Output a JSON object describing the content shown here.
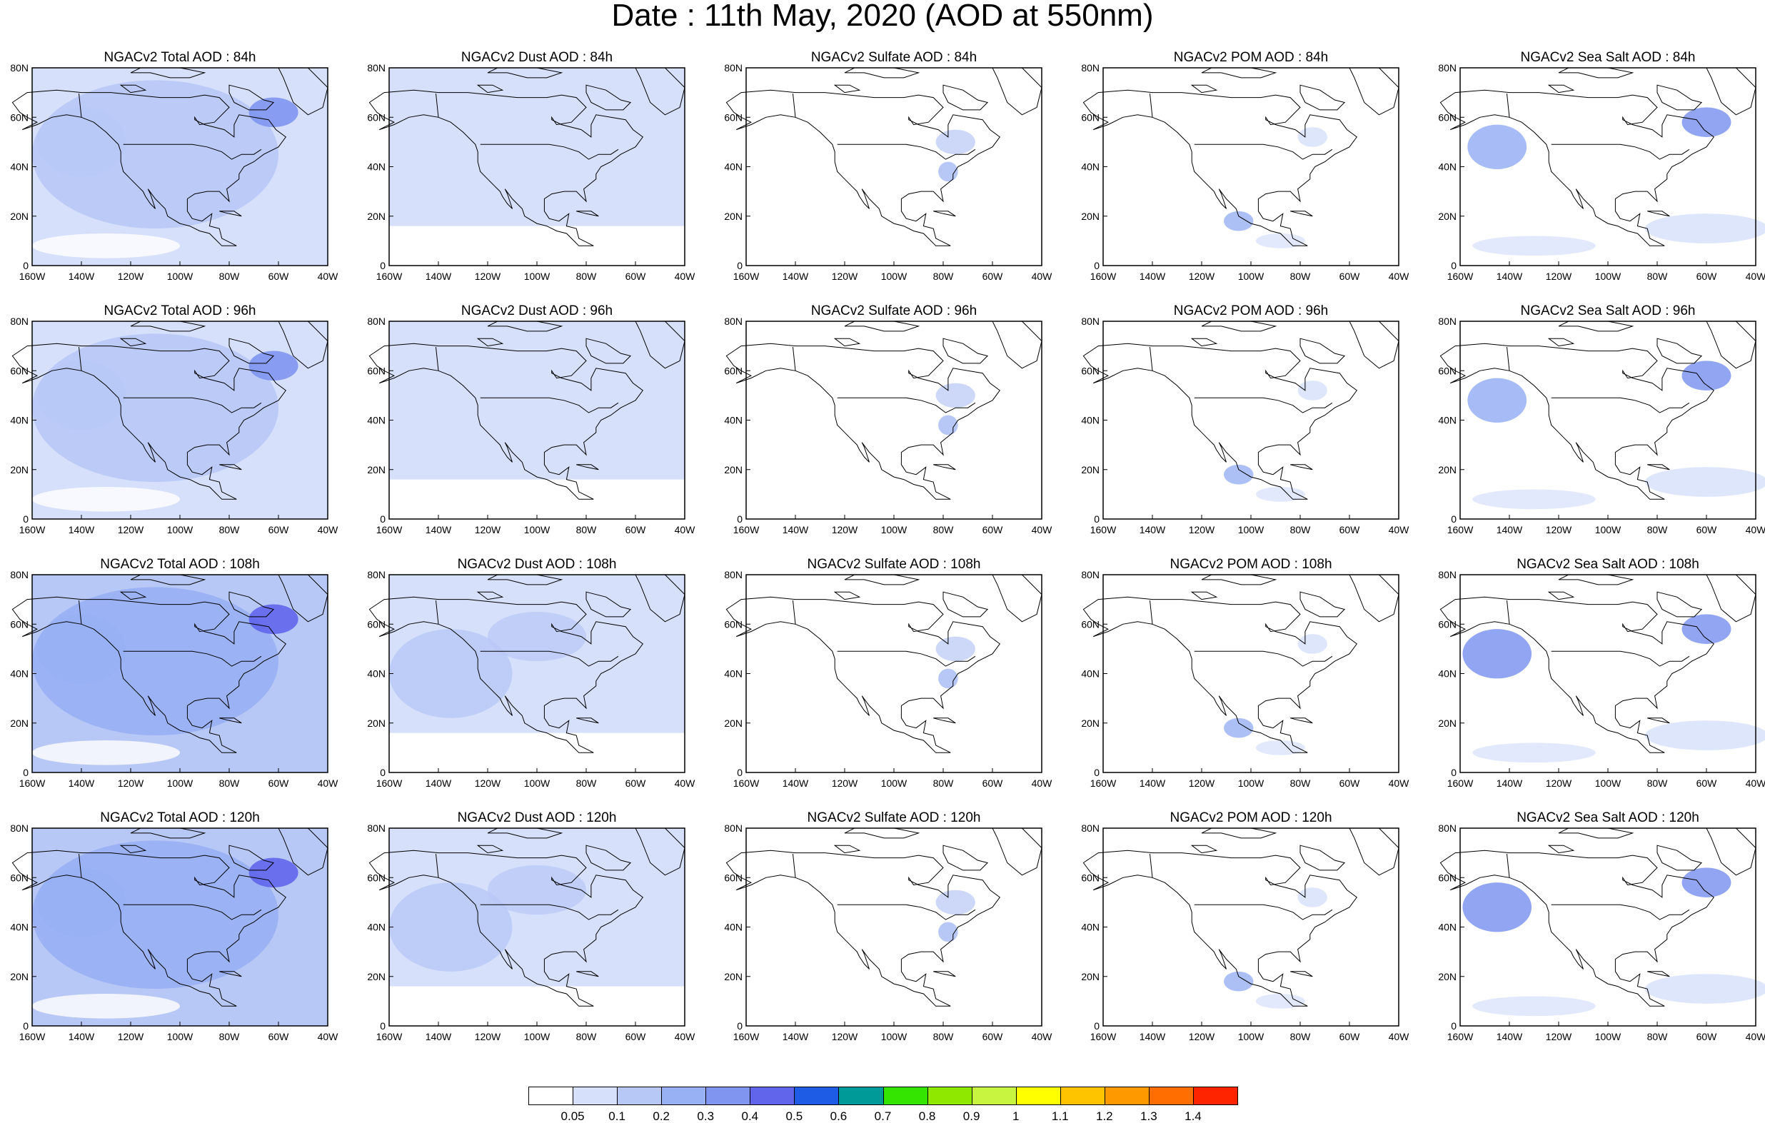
{
  "title": "Date : 11th May, 2020 (AOD at 550nm)",
  "axes": {
    "lat_ticks": [
      "0",
      "20N",
      "40N",
      "60N",
      "80N"
    ],
    "lon_ticks": [
      "160W",
      "140W",
      "120W",
      "100W",
      "80W",
      "60W",
      "40W"
    ]
  },
  "panels": [
    [
      "NGACv2 Total AOD : 84h",
      "NGACv2 Dust AOD : 84h",
      "NGACv2 Sulfate AOD : 84h",
      "NGACv2 POM AOD : 84h",
      "NGACv2 Sea Salt AOD : 84h"
    ],
    [
      "NGACv2 Total AOD : 96h",
      "NGACv2 Dust AOD : 96h",
      "NGACv2 Sulfate AOD : 96h",
      "NGACv2 POM AOD : 96h",
      "NGACv2 Sea Salt AOD : 96h"
    ],
    [
      "NGACv2 Total AOD : 108h",
      "NGACv2 Dust AOD : 108h",
      "NGACv2 Sulfate AOD : 108h",
      "NGACv2 POM AOD : 108h",
      "NGACv2 Sea Salt AOD : 108h"
    ],
    [
      "NGACv2 Total AOD : 120h",
      "NGACv2 Dust AOD : 120h",
      "NGACv2 Sulfate AOD : 120h",
      "NGACv2 POM AOD : 120h",
      "NGACv2 Sea Salt  AOD : 120h"
    ]
  ],
  "colorbar": {
    "labels": [
      "0.05",
      "0.1",
      "0.2",
      "0.3",
      "0.4",
      "0.5",
      "0.6",
      "0.7",
      "0.8",
      "0.9",
      "1",
      "1.1",
      "1.2",
      "1.3",
      "1.4"
    ],
    "colors": [
      "#ffffff",
      "#d6e0fb",
      "#b8c8f6",
      "#98b0f4",
      "#7f95f0",
      "#6165ec",
      "#1e5ce6",
      "#009a99",
      "#33e500",
      "#8fe800",
      "#c8f540",
      "#ffff00",
      "#ffc400",
      "#ff9900",
      "#ff6e00",
      "#ff2400"
    ]
  },
  "chart_data": {
    "type": "heatmap",
    "title": "Date : 11th May, 2020 (AOD at 550nm)",
    "xlabel": "",
    "ylabel": "",
    "x_range": [
      "160W",
      "40W"
    ],
    "y_range": [
      "0",
      "80N"
    ],
    "rows_forecast_hours": [
      "84h",
      "96h",
      "108h",
      "120h"
    ],
    "columns_species": [
      "Total",
      "Dust",
      "Sulfate",
      "POM",
      "Sea Salt"
    ],
    "intensity_level": [
      [
        2,
        1,
        0,
        0,
        1
      ],
      [
        2,
        1,
        0,
        0,
        1
      ],
      [
        3,
        2,
        0,
        0,
        2
      ],
      [
        3,
        2,
        0,
        0,
        2
      ]
    ],
    "levels": [
      "0.05",
      "0.1",
      "0.2",
      "0.3",
      "0.4",
      "0.5",
      "0.6",
      "0.7",
      "0.8",
      "0.9",
      "1",
      "1.1",
      "1.2",
      "1.3",
      "1.4"
    ]
  }
}
